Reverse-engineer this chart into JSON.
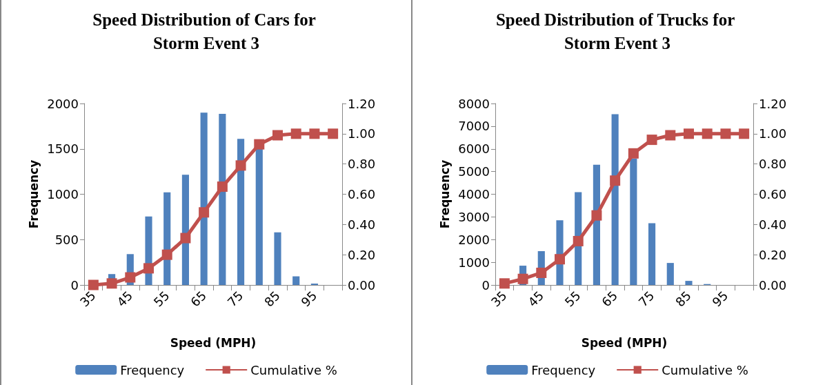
{
  "chart_data": [
    {
      "type": "bar",
      "title": "Speed Distribution of Cars for Storm Event 3",
      "xlabel": "Speed (MPH)",
      "ylabel": "Frequency",
      "categories": [
        "35",
        null,
        "45",
        null,
        "55",
        null,
        "65",
        null,
        "75",
        null,
        "85",
        null,
        "95",
        null
      ],
      "series": [
        {
          "name": "Frequency",
          "color": "#4f81bd",
          "values": [
            null,
            120,
            340,
            755,
            1020,
            1215,
            1900,
            1885,
            1610,
            1500,
            580,
            95,
            15,
            0
          ]
        },
        {
          "name": "Cumulative %",
          "type": "line",
          "axis": "y2",
          "color": "#c0504d",
          "values": [
            0.0,
            0.01,
            0.05,
            0.11,
            0.2,
            0.31,
            0.48,
            0.65,
            0.79,
            0.93,
            0.99,
            1.0,
            1.0,
            1.0
          ]
        }
      ],
      "ylim": [
        0,
        2000
      ],
      "yticks": [
        0,
        500,
        1000,
        1500,
        2000
      ],
      "y2lim": [
        0,
        1.2
      ],
      "y2ticks": [
        {
          "value": 0,
          "label": "0.00"
        },
        {
          "value": 0.2,
          "label": "0.20"
        },
        {
          "value": 0.4,
          "label": "0.40"
        },
        {
          "value": 0.6,
          "label": "0.60"
        },
        {
          "value": 0.8,
          "label": "0.80"
        },
        {
          "value": 1,
          "label": "1.00"
        },
        {
          "value": 1.2,
          "label": "1.20"
        }
      ],
      "grid": false,
      "legend": "bottom",
      "marker": "square"
    },
    {
      "type": "bar",
      "title": "Speed Distribution of Trucks for Storm Event 3",
      "xlabel": "Speed (MPH)",
      "ylabel": "Frequency",
      "categories": [
        "35",
        null,
        "45",
        null,
        "55",
        null,
        "65",
        null,
        "75",
        null,
        "85",
        null,
        "95",
        null
      ],
      "series": [
        {
          "name": "Frequency",
          "color": "#4f81bd",
          "values": [
            0,
            850,
            1490,
            2850,
            4090,
            5300,
            7530,
            5570,
            2720,
            970,
            180,
            40,
            0,
            0
          ]
        },
        {
          "name": "Cumulative %",
          "type": "line",
          "axis": "y2",
          "color": "#c0504d",
          "values": [
            0.01,
            0.04,
            0.08,
            0.17,
            0.29,
            0.46,
            0.69,
            0.87,
            0.96,
            0.99,
            1.0,
            1.0,
            1.0,
            1.0
          ]
        }
      ],
      "ylim": [
        0,
        8000
      ],
      "yticks": [
        0,
        1000,
        2000,
        3000,
        4000,
        5000,
        6000,
        7000,
        8000
      ],
      "y2lim": [
        0,
        1.2
      ],
      "y2ticks": [
        {
          "value": 0,
          "label": "0.00"
        },
        {
          "value": 0.2,
          "label": "0.20"
        },
        {
          "value": 0.4,
          "label": "0.40"
        },
        {
          "value": 0.6,
          "label": "0.60"
        },
        {
          "value": 0.8,
          "label": "0.80"
        },
        {
          "value": 1,
          "label": "1.00"
        },
        {
          "value": 1.2,
          "label": "1.20"
        }
      ],
      "grid": false,
      "legend": "bottom",
      "marker": "square"
    }
  ]
}
